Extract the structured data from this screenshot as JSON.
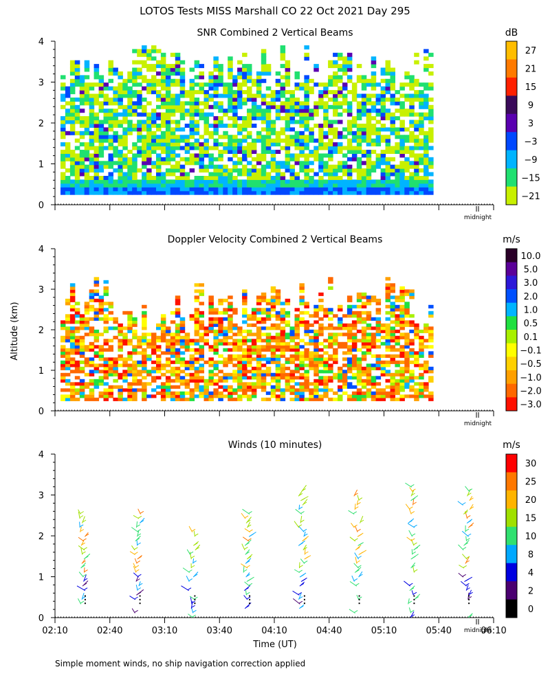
{
  "title": "LOTOS Tests MISS Marshall CO  22 Oct 2021 Day 295",
  "footnote": "Simple moment winds, no ship navigation correction applied",
  "shared_axes": {
    "ylabel": "Altitude (km)",
    "xlabel": "Time (UT)",
    "x_ticks": [
      "02:10",
      "02:40",
      "03:10",
      "03:40",
      "04:10",
      "04:40",
      "05:10",
      "05:40",
      "06:10"
    ],
    "x_range_minutes_after_0210": [
      0,
      240
    ],
    "y_ticks": [
      "0",
      "1",
      "2",
      "3",
      "4"
    ],
    "y_range_km": [
      0,
      4
    ],
    "midnight_label": "midnight"
  },
  "chart_data": [
    {
      "type": "heatmap",
      "title": "SNR Combined 2 Vertical Beams",
      "units": "dB",
      "colorbar_labels": [
        "27",
        "21",
        "15",
        "9",
        "3",
        "−3",
        "−9",
        "−15",
        "−21"
      ],
      "colorbar_colors": [
        "#ffbd00",
        "#ff7a00",
        "#ff2000",
        "#3a0a5a",
        "#5a00b0",
        "#0048ff",
        "#00b4ff",
        "#20e070",
        "#c8f000"
      ],
      "ylim": [
        0,
        4
      ],
      "data_altitude_range_km": [
        0.25,
        3.9
      ],
      "seed": 11
    },
    {
      "type": "heatmap",
      "title": "Doppler Velocity Combined 2 Vertical Beams",
      "units": "m/s",
      "colorbar_labels": [
        "10.0",
        "5.0",
        "3.0",
        "2.0",
        "1.0",
        "0.5",
        "0.1",
        "−0.1",
        "−0.5",
        "−1.0",
        "−2.0",
        "−3.0"
      ],
      "colorbar_colors": [
        "#2a0028",
        "#5a0098",
        "#2c18d8",
        "#0050ff",
        "#00b4ff",
        "#20e040",
        "#a8f000",
        "#ffff00",
        "#ffd000",
        "#ffa000",
        "#ff6800",
        "#ff1000"
      ],
      "ylim": [
        0,
        4
      ],
      "data_altitude_range_km": [
        0.25,
        3.3
      ],
      "seed": 29
    },
    {
      "type": "wind-barbs",
      "title": "Winds (10 minutes)",
      "units": "m/s",
      "colorbar_labels": [
        "30",
        "25",
        "20",
        "15",
        "10",
        "8",
        "4",
        "2",
        "0"
      ],
      "colorbar_colors": [
        "#ff0000",
        "#ff7800",
        "#ffb400",
        "#a0e000",
        "#30e070",
        "#00a8ff",
        "#0000e0",
        "#4a0070",
        "#000000"
      ],
      "ylim": [
        0,
        4
      ],
      "profile_times": [
        "02:25",
        "02:55",
        "03:25",
        "03:55",
        "04:25",
        "04:55",
        "05:25",
        "05:55"
      ],
      "profile_minutes": [
        15,
        45,
        75,
        105,
        135,
        165,
        195,
        225
      ],
      "profile_top_km": [
        2.6,
        2.6,
        2.3,
        2.6,
        3.1,
        3.0,
        3.4,
        3.1
      ],
      "seed": 47
    }
  ]
}
